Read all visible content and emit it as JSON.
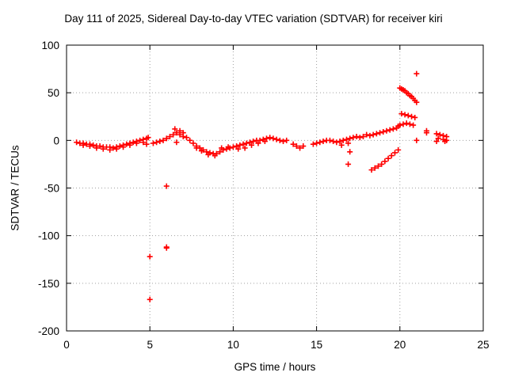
{
  "chart_data": {
    "type": "scatter",
    "title": "Day 111 of 2025, Sidereal Day-to-day VTEC variation (SDTVAR) for receiver kiri",
    "xlabel": "GPS time / hours",
    "ylabel": "SDTVAR / TECUs",
    "xlim": [
      0,
      25
    ],
    "ylim": [
      -200,
      100
    ],
    "xticks": [
      0,
      5,
      10,
      15,
      20,
      25
    ],
    "yticks": [
      -200,
      -150,
      -100,
      -50,
      0,
      50,
      100
    ],
    "grid": true,
    "marker": "+",
    "color": "#ff0000",
    "series": [
      {
        "name": "SDTVAR",
        "points": [
          [
            0.6,
            -2
          ],
          [
            0.8,
            -3
          ],
          [
            1.0,
            -3
          ],
          [
            1.2,
            -4
          ],
          [
            1.4,
            -4
          ],
          [
            1.6,
            -5
          ],
          [
            1.8,
            -6
          ],
          [
            2.0,
            -6
          ],
          [
            2.2,
            -7
          ],
          [
            2.4,
            -7
          ],
          [
            2.6,
            -7
          ],
          [
            2.8,
            -8
          ],
          [
            3.0,
            -7
          ],
          [
            3.2,
            -6
          ],
          [
            3.4,
            -5
          ],
          [
            3.6,
            -4
          ],
          [
            3.8,
            -3
          ],
          [
            4.0,
            -2
          ],
          [
            4.2,
            -1
          ],
          [
            4.4,
            0
          ],
          [
            4.6,
            1
          ],
          [
            4.8,
            2
          ],
          [
            4.9,
            3
          ],
          [
            1.0,
            -5
          ],
          [
            1.4,
            -6
          ],
          [
            1.8,
            -8
          ],
          [
            2.2,
            -9
          ],
          [
            2.6,
            -10
          ],
          [
            3.0,
            -9
          ],
          [
            3.4,
            -7
          ],
          [
            3.8,
            -5
          ],
          [
            4.2,
            -3
          ],
          [
            4.6,
            -2
          ],
          [
            4.8,
            -4
          ],
          [
            5.2,
            -3
          ],
          [
            5.4,
            -2
          ],
          [
            5.6,
            -1
          ],
          [
            5.8,
            0
          ],
          [
            6.0,
            2
          ],
          [
            6.2,
            4
          ],
          [
            6.4,
            6
          ],
          [
            6.6,
            8
          ],
          [
            6.8,
            6
          ],
          [
            7.0,
            4
          ],
          [
            7.2,
            3
          ],
          [
            7.4,
            0
          ],
          [
            7.6,
            -3
          ],
          [
            7.8,
            -6
          ],
          [
            8.0,
            -8
          ],
          [
            8.2,
            -10
          ],
          [
            8.4,
            -12
          ],
          [
            8.6,
            -13
          ],
          [
            8.8,
            -14
          ],
          [
            9.0,
            -14
          ],
          [
            7.8,
            -8
          ],
          [
            8.1,
            -11
          ],
          [
            8.5,
            -15
          ],
          [
            8.9,
            -16
          ],
          [
            6.5,
            12
          ],
          [
            6.8,
            10
          ],
          [
            7.0,
            8
          ],
          [
            6.6,
            -2
          ],
          [
            9.2,
            -12
          ],
          [
            9.4,
            -10
          ],
          [
            9.6,
            -9
          ],
          [
            9.8,
            -8
          ],
          [
            10.0,
            -7
          ],
          [
            10.2,
            -6
          ],
          [
            10.4,
            -5
          ],
          [
            10.6,
            -4
          ],
          [
            10.8,
            -3
          ],
          [
            11.0,
            -2
          ],
          [
            11.2,
            -1
          ],
          [
            11.4,
            0
          ],
          [
            11.6,
            0
          ],
          [
            11.8,
            1
          ],
          [
            12.0,
            2
          ],
          [
            12.2,
            3
          ],
          [
            9.3,
            -8
          ],
          [
            9.7,
            -7
          ],
          [
            10.3,
            -9
          ],
          [
            10.7,
            -8
          ],
          [
            11.1,
            -5
          ],
          [
            11.5,
            -3
          ],
          [
            11.9,
            -1
          ],
          [
            12.4,
            2
          ],
          [
            12.6,
            1
          ],
          [
            12.8,
            0
          ],
          [
            13.0,
            -1
          ],
          [
            13.2,
            0
          ],
          [
            13.6,
            -4
          ],
          [
            13.8,
            -6
          ],
          [
            14.0,
            -8
          ],
          [
            14.2,
            -6
          ],
          [
            14.8,
            -4
          ],
          [
            15.0,
            -3
          ],
          [
            15.2,
            -2
          ],
          [
            15.4,
            -1
          ],
          [
            15.6,
            0
          ],
          [
            15.8,
            0
          ],
          [
            16.0,
            -1
          ],
          [
            16.2,
            -2
          ],
          [
            16.4,
            -1
          ],
          [
            16.6,
            0
          ],
          [
            16.8,
            1
          ],
          [
            17.0,
            2
          ],
          [
            16.5,
            -5
          ],
          [
            16.9,
            -3
          ],
          [
            17.2,
            3
          ],
          [
            17.4,
            4
          ],
          [
            17.6,
            3
          ],
          [
            17.8,
            4
          ],
          [
            18.0,
            6
          ],
          [
            18.2,
            5
          ],
          [
            18.4,
            6
          ],
          [
            18.6,
            7
          ],
          [
            18.8,
            8
          ],
          [
            19.0,
            9
          ],
          [
            19.2,
            10
          ],
          [
            19.4,
            11
          ],
          [
            19.6,
            12
          ],
          [
            19.8,
            13
          ],
          [
            19.9,
            15
          ],
          [
            20.0,
            16
          ],
          [
            20.2,
            17
          ],
          [
            20.4,
            18
          ],
          [
            20.6,
            17
          ],
          [
            20.8,
            16
          ],
          [
            20.1,
            28
          ],
          [
            20.3,
            27
          ],
          [
            20.5,
            26
          ],
          [
            20.7,
            25
          ],
          [
            20.9,
            24
          ],
          [
            20.0,
            55
          ],
          [
            20.1,
            54
          ],
          [
            20.2,
            53
          ],
          [
            20.3,
            52
          ],
          [
            20.4,
            50
          ],
          [
            20.5,
            49
          ],
          [
            20.6,
            47
          ],
          [
            20.7,
            46
          ],
          [
            20.8,
            44
          ],
          [
            20.9,
            42
          ],
          [
            21.0,
            40
          ],
          [
            18.3,
            -31
          ],
          [
            18.5,
            -29
          ],
          [
            18.7,
            -27
          ],
          [
            18.9,
            -25
          ],
          [
            19.1,
            -22
          ],
          [
            19.3,
            -19
          ],
          [
            19.5,
            -16
          ],
          [
            19.7,
            -13
          ],
          [
            19.9,
            -10
          ],
          [
            21.0,
            70
          ],
          [
            21.0,
            0
          ],
          [
            21.6,
            10
          ],
          [
            21.6,
            8
          ],
          [
            22.2,
            7
          ],
          [
            22.4,
            6
          ],
          [
            22.6,
            5
          ],
          [
            22.8,
            4
          ],
          [
            22.3,
            2
          ],
          [
            22.6,
            1
          ],
          [
            22.8,
            0
          ],
          [
            22.2,
            -1
          ],
          [
            22.7,
            -1
          ],
          [
            17.0,
            -12
          ],
          [
            16.9,
            -25
          ],
          [
            5.0,
            -122
          ],
          [
            5.0,
            -167
          ],
          [
            6.0,
            -48
          ],
          [
            6.0,
            -112
          ],
          [
            6.0,
            -113
          ]
        ]
      }
    ]
  }
}
